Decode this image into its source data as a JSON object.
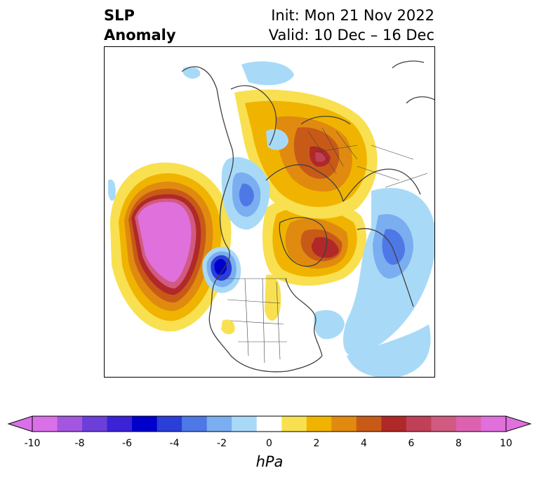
{
  "title": {
    "left_line1": "SLP",
    "left_line2": "Anomaly",
    "right_line1": "Init: Mon 21 Nov 2022",
    "right_line2": "Valid: 10 Dec – 16 Dec"
  },
  "colorbar": {
    "unit": "hPa",
    "ticks": [
      "-10",
      "-8",
      "-6",
      "-4",
      "-2",
      "0",
      "2",
      "4",
      "6",
      "8",
      "10"
    ],
    "extend": "both",
    "colors": [
      "#da70e8",
      "#a556e0",
      "#6b3fd8",
      "#3b22d6",
      "#0000cc",
      "#2a3ed8",
      "#4e78e6",
      "#7aaef0",
      "#a8daf8",
      "#ffffff",
      "#f8e050",
      "#f0b400",
      "#e08a10",
      "#c85a18",
      "#b02828",
      "#c04058",
      "#d05a80",
      "#dc62b0",
      "#e070dc"
    ]
  },
  "map": {
    "projection": "north-polar-stereographic",
    "features": [
      "coastlines",
      "country-borders",
      "us-state-borders",
      "canada-province-borders"
    ],
    "anomalies": [
      {
        "label": "strong positive anomaly over North Pacific / Aleutians",
        "value_hpa": 10
      },
      {
        "label": "positive anomaly over Greenland / Baffin",
        "value_hpa": 6
      },
      {
        "label": "positive anomaly over Scandinavia / Arctic Siberia",
        "value_hpa": 6
      },
      {
        "label": "negative anomaly off US Pacific Northwest",
        "value_hpa": -6
      },
      {
        "label": "negative anomaly over Central Asia",
        "value_hpa": -4
      },
      {
        "label": "negative anomaly over Arctic Canada",
        "value_hpa": -3
      },
      {
        "label": "weak negative anomaly over North Atlantic",
        "value_hpa": -1
      }
    ]
  }
}
